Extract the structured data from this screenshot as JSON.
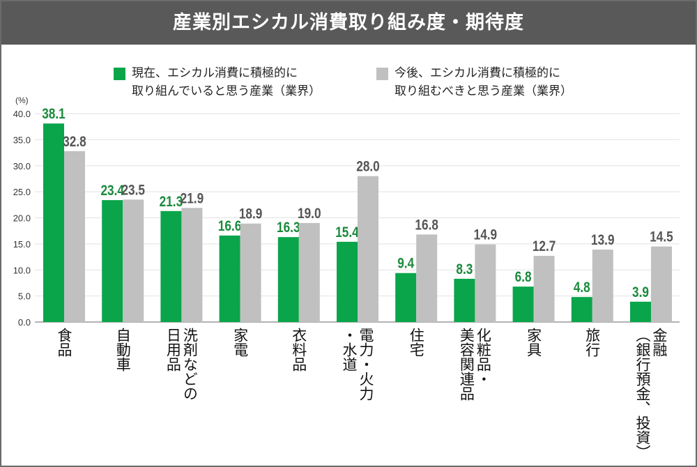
{
  "chart_data": {
    "type": "bar",
    "title": "産業別エシカル消費取り組み度・期待度",
    "ylabel": "(%)",
    "ylim": [
      0,
      40
    ],
    "yticks": [
      "0.0",
      "5.0",
      "10.0",
      "15.0",
      "20.0",
      "25.0",
      "30.0",
      "35.0",
      "40.0"
    ],
    "grid": true,
    "legend_position": "top",
    "categories": [
      "食品",
      "自動車",
      "洗剤などの\n日用品",
      "家電",
      "衣料品",
      "電力・火力\n・水道",
      "住宅",
      "化粧品・\n美容関連品",
      "家具",
      "旅行",
      "金融\n（銀行預金、投資）"
    ],
    "series": [
      {
        "name": "現在、エシカル消費に積極的に\n取り組んでいると思う産業（業界）",
        "color": "#0aa54a",
        "label_color": "#1a8a3c",
        "values": [
          38.1,
          23.4,
          21.3,
          16.6,
          16.3,
          15.4,
          9.4,
          8.3,
          6.8,
          4.8,
          3.9
        ]
      },
      {
        "name": "今後、エシカル消費に積極的に\n取り組むべきと思う産業（業界）",
        "color": "#c0c0c0",
        "label_color": "#555555",
        "values": [
          32.8,
          23.5,
          21.9,
          18.9,
          19.0,
          28.0,
          16.8,
          14.9,
          12.7,
          13.9,
          14.5
        ]
      }
    ]
  }
}
